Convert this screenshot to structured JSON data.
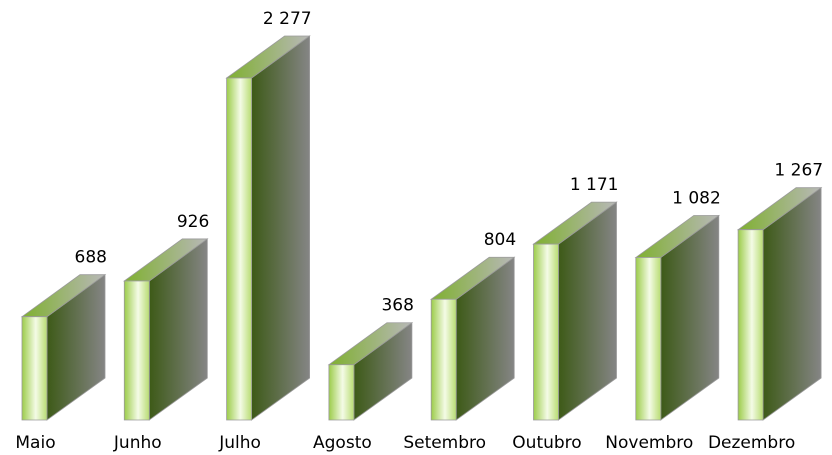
{
  "chart_data": {
    "type": "bar3d",
    "categories": [
      "Maio",
      "Junho",
      "Julho",
      "Agosto",
      "Setembro",
      "Outubro",
      "Novembro",
      "Dezembro"
    ],
    "values": [
      688,
      926,
      2277,
      368,
      804,
      1171,
      1082,
      1267
    ],
    "value_labels": [
      "688",
      "926",
      "2 277",
      "368",
      "804",
      "1 171",
      "1 082",
      "1 267"
    ]
  }
}
